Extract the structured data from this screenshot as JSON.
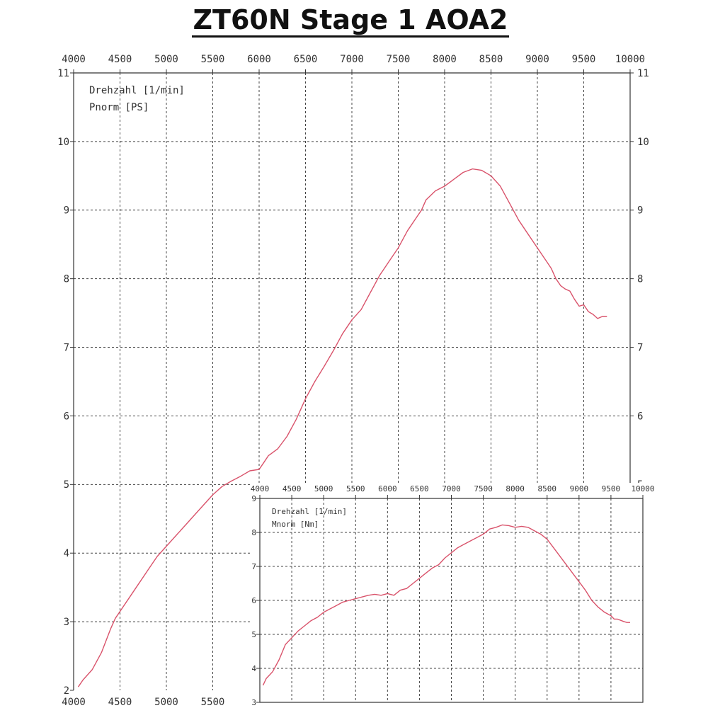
{
  "title": "ZT60N  Stage 1  AOA2",
  "colors": {
    "curve": "#d9536b",
    "frame": "#333333",
    "grid": "#444444",
    "text": "#333333"
  },
  "chart_data": [
    {
      "id": "power",
      "type": "line",
      "title": "",
      "legend": [
        "Drehzahl [1/min]",
        "Pnorm [PS]"
      ],
      "legend_position": "top-left",
      "xlabel": "Drehzahl [1/min]",
      "ylabel": "Pnorm [PS]",
      "xlim": [
        4000,
        10000
      ],
      "ylim": [
        2,
        11
      ],
      "grid": true,
      "x_ticks_top": [
        4000,
        4500,
        5000,
        5500,
        6000,
        6500,
        7000,
        7500,
        8000,
        8500,
        9000,
        9500,
        10000
      ],
      "x_ticks_bottom": [
        4000,
        4500,
        5000,
        5500
      ],
      "y_ticks_left": [
        2,
        3,
        4,
        5,
        6,
        7,
        8,
        9,
        10,
        11
      ],
      "y_ticks_right": [
        5,
        6,
        7,
        8,
        9,
        10,
        11
      ],
      "series": [
        {
          "x": [
            4050,
            4100,
            4200,
            4300,
            4400,
            4450,
            4500,
            4600,
            4700,
            4800,
            4900,
            5000,
            5100,
            5200,
            5300,
            5400,
            5500,
            5600,
            5700,
            5800,
            5900,
            6000,
            6050,
            6100,
            6200,
            6300,
            6400,
            6500,
            6600,
            6700,
            6800,
            6900,
            7000,
            7100,
            7200,
            7300,
            7400,
            7500,
            7600,
            7700,
            7750,
            7800,
            7900,
            8000,
            8100,
            8200,
            8300,
            8400,
            8500,
            8600,
            8700,
            8800,
            8900,
            9000,
            9100,
            9150,
            9200,
            9250,
            9300,
            9350,
            9400,
            9450,
            9500,
            9550,
            9600,
            9650,
            9700,
            9750
          ],
          "y": [
            2.05,
            2.15,
            2.3,
            2.55,
            2.9,
            3.05,
            3.15,
            3.35,
            3.55,
            3.75,
            3.95,
            4.1,
            4.25,
            4.4,
            4.55,
            4.7,
            4.85,
            4.97,
            5.05,
            5.12,
            5.2,
            5.22,
            5.32,
            5.42,
            5.52,
            5.7,
            5.95,
            6.25,
            6.5,
            6.72,
            6.95,
            7.2,
            7.4,
            7.55,
            7.8,
            8.05,
            8.25,
            8.45,
            8.7,
            8.9,
            9.0,
            9.15,
            9.28,
            9.35,
            9.45,
            9.55,
            9.6,
            9.58,
            9.5,
            9.35,
            9.1,
            8.85,
            8.65,
            8.45,
            8.25,
            8.15,
            8.0,
            7.9,
            7.85,
            7.82,
            7.7,
            7.6,
            7.62,
            7.52,
            7.48,
            7.42,
            7.45,
            7.45
          ]
        }
      ]
    },
    {
      "id": "torque",
      "type": "line",
      "title": "",
      "legend": [
        "Drehzahl [1/min]",
        "Mnorm [Nm]"
      ],
      "legend_position": "top-left",
      "xlabel": "Drehzahl [1/min]",
      "ylabel": "Mnorm [Nm]",
      "xlim": [
        4000,
        10000
      ],
      "ylim": [
        3,
        9
      ],
      "grid": true,
      "x_ticks_top": [
        4000,
        4500,
        5000,
        5500,
        6000,
        6500,
        7000,
        7500,
        8000,
        8500,
        9000,
        9500,
        10000
      ],
      "y_ticks_left": [
        3,
        4,
        5,
        6,
        7,
        8,
        9
      ],
      "series": [
        {
          "x": [
            4050,
            4100,
            4200,
            4300,
            4400,
            4500,
            4600,
            4700,
            4800,
            4900,
            5000,
            5100,
            5200,
            5300,
            5400,
            5500,
            5600,
            5700,
            5800,
            5900,
            6000,
            6100,
            6200,
            6300,
            6400,
            6500,
            6600,
            6700,
            6800,
            6900,
            7000,
            7100,
            7200,
            7300,
            7400,
            7500,
            7600,
            7700,
            7800,
            7900,
            8000,
            8100,
            8200,
            8300,
            8400,
            8500,
            8600,
            8700,
            8800,
            8900,
            9000,
            9100,
            9200,
            9300,
            9400,
            9500,
            9550,
            9600,
            9700,
            9750,
            9800
          ],
          "y": [
            3.5,
            3.7,
            3.9,
            4.25,
            4.7,
            4.9,
            5.1,
            5.25,
            5.4,
            5.5,
            5.65,
            5.75,
            5.85,
            5.95,
            6.0,
            6.05,
            6.1,
            6.15,
            6.18,
            6.15,
            6.2,
            6.15,
            6.3,
            6.35,
            6.5,
            6.65,
            6.8,
            6.95,
            7.05,
            7.25,
            7.4,
            7.55,
            7.65,
            7.75,
            7.85,
            7.95,
            8.1,
            8.15,
            8.22,
            8.2,
            8.15,
            8.18,
            8.15,
            8.05,
            7.95,
            7.8,
            7.55,
            7.3,
            7.05,
            6.8,
            6.55,
            6.3,
            6.0,
            5.8,
            5.65,
            5.55,
            5.45,
            5.45,
            5.38,
            5.35,
            5.35
          ]
        }
      ]
    }
  ]
}
